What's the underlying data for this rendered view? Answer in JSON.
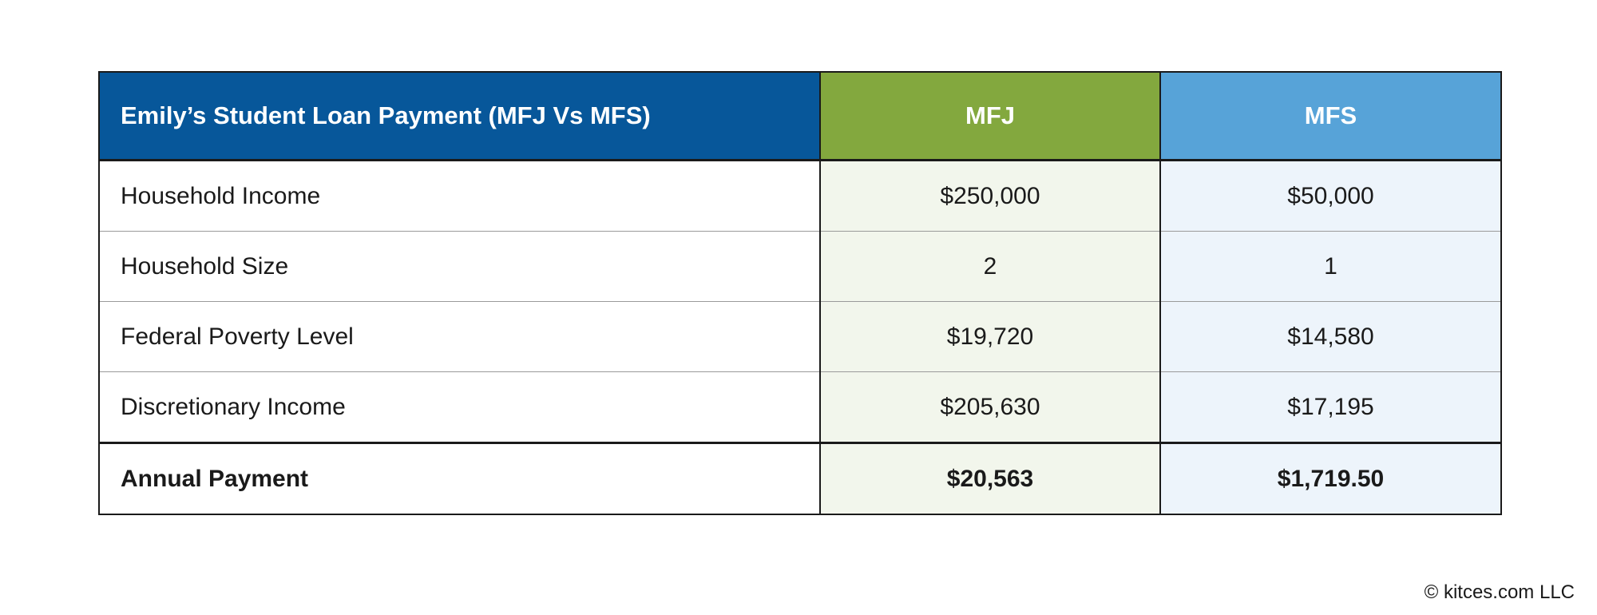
{
  "table": {
    "headers": {
      "label": "Emily’s Student Loan Payment (MFJ Vs MFS)",
      "mfj": "MFJ",
      "mfs": "MFS"
    },
    "rows": [
      {
        "label": "Household Income",
        "mfj": "$250,000",
        "mfs": "$50,000"
      },
      {
        "label": "Household Size",
        "mfj": "2",
        "mfs": "1"
      },
      {
        "label": "Federal Poverty Level",
        "mfj": "$19,720",
        "mfs": "$14,580"
      },
      {
        "label": "Discretionary Income",
        "mfj": "$205,630",
        "mfs": "$17,195"
      }
    ],
    "total": {
      "label": "Annual Payment",
      "mfj": "$20,563",
      "mfs": "$1,719.50"
    }
  },
  "footer": {
    "copyright": "© kitces.com LLC"
  },
  "colors": {
    "header_label_bg": "#07579a",
    "header_mfj_bg": "#83a83e",
    "header_mfs_bg": "#57a3d8",
    "mfj_cell_bg": "#f2f6ec",
    "mfs_cell_bg": "#edf4fb"
  }
}
